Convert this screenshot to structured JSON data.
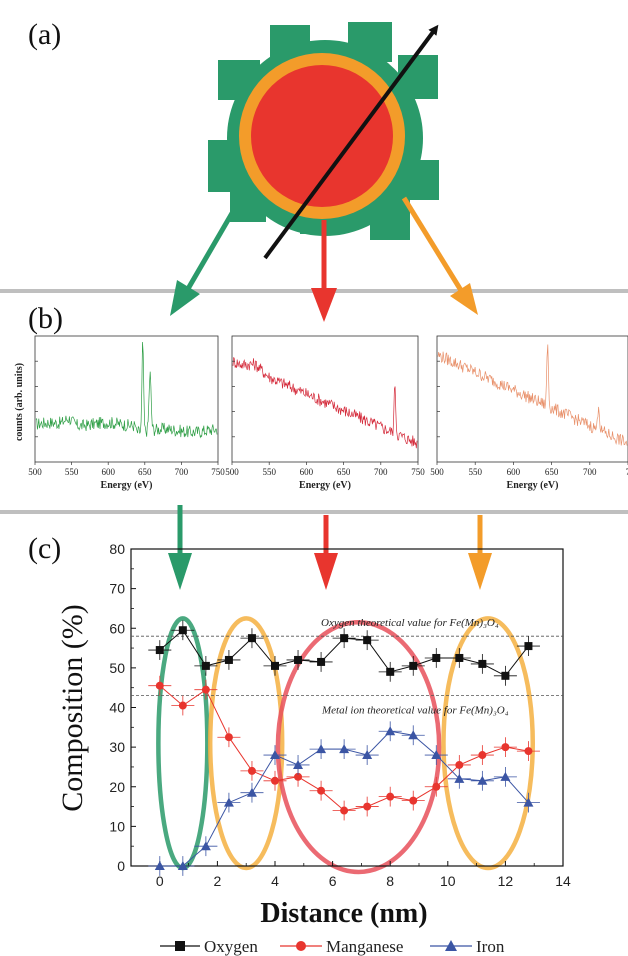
{
  "panels": {
    "a": "(a)",
    "b": "(b)",
    "c": "(c)"
  },
  "colors": {
    "green": "#2a9a6a",
    "red": "#e8352e",
    "orange": "#f39c2a",
    "black": "#111111",
    "blue": "#3b55a4",
    "gray": "#bfbfbf"
  },
  "spectra": {
    "ylabel": "counts (arb. units)",
    "xlabel": "Energy (eV)",
    "xticks": [
      "500",
      "550",
      "600",
      "650",
      "700",
      "750"
    ],
    "panels": [
      {
        "name": "green-spectrum",
        "color": "#2e9e45"
      },
      {
        "name": "red-spectrum",
        "color": "#d42a3a"
      },
      {
        "name": "orange-spectrum",
        "color": "#e8906a"
      }
    ]
  },
  "chart_data": {
    "type": "line",
    "xlabel": "Distance (nm)",
    "ylabel": "Composition (%)",
    "xlim": [
      -1,
      14
    ],
    "ylim": [
      0,
      80
    ],
    "xticks": [
      "0",
      "2",
      "4",
      "6",
      "8",
      "10",
      "12",
      "14"
    ],
    "yticks": [
      "0",
      "10",
      "20",
      "30",
      "40",
      "50",
      "60",
      "70",
      "80"
    ],
    "series": [
      {
        "name": "Oxygen",
        "marker": "square",
        "color": "#111111",
        "x": [
          0,
          0.8,
          1.6,
          2.4,
          3.2,
          4,
          4.8,
          5.6,
          6.4,
          7.2,
          8,
          8.8,
          9.6,
          10.4,
          11.2,
          12,
          12.8
        ],
        "y": [
          54.5,
          59.5,
          50.5,
          52,
          57.5,
          50.5,
          52,
          51.5,
          57.5,
          57,
          49,
          50.5,
          52.5,
          52.5,
          51,
          48,
          55.5
        ]
      },
      {
        "name": "Manganese",
        "marker": "circle",
        "color": "#e8352e",
        "x": [
          0,
          0.8,
          1.6,
          2.4,
          3.2,
          4,
          4.8,
          5.6,
          6.4,
          7.2,
          8,
          8.8,
          9.6,
          10.4,
          11.2,
          12,
          12.8
        ],
        "y": [
          45.5,
          40.5,
          44.5,
          32.5,
          24,
          21.5,
          22.5,
          19,
          14,
          15,
          17.5,
          16.5,
          20,
          25.5,
          28,
          30,
          29
        ]
      },
      {
        "name": "Iron",
        "marker": "triangle",
        "color": "#3b55a4",
        "x": [
          0,
          0.8,
          1.6,
          2.4,
          3.2,
          4,
          4.8,
          5.6,
          6.4,
          7.2,
          8,
          8.8,
          9.6,
          10.4,
          11.2,
          12,
          12.8
        ],
        "y": [
          0,
          0,
          5,
          16,
          18.5,
          28,
          25.5,
          29.5,
          29.5,
          28,
          34,
          33,
          28,
          22,
          21.5,
          22.5,
          16
        ]
      }
    ],
    "reference_lines": [
      {
        "y": 58,
        "label": "Oxygen theoretical value for Fe(Mn)₃O₄"
      },
      {
        "y": 43,
        "label": "Metal ion theoretical value for Fe(Mn)₃O₄"
      }
    ],
    "legend": [
      "Oxygen",
      "Manganese",
      "Iron"
    ]
  }
}
